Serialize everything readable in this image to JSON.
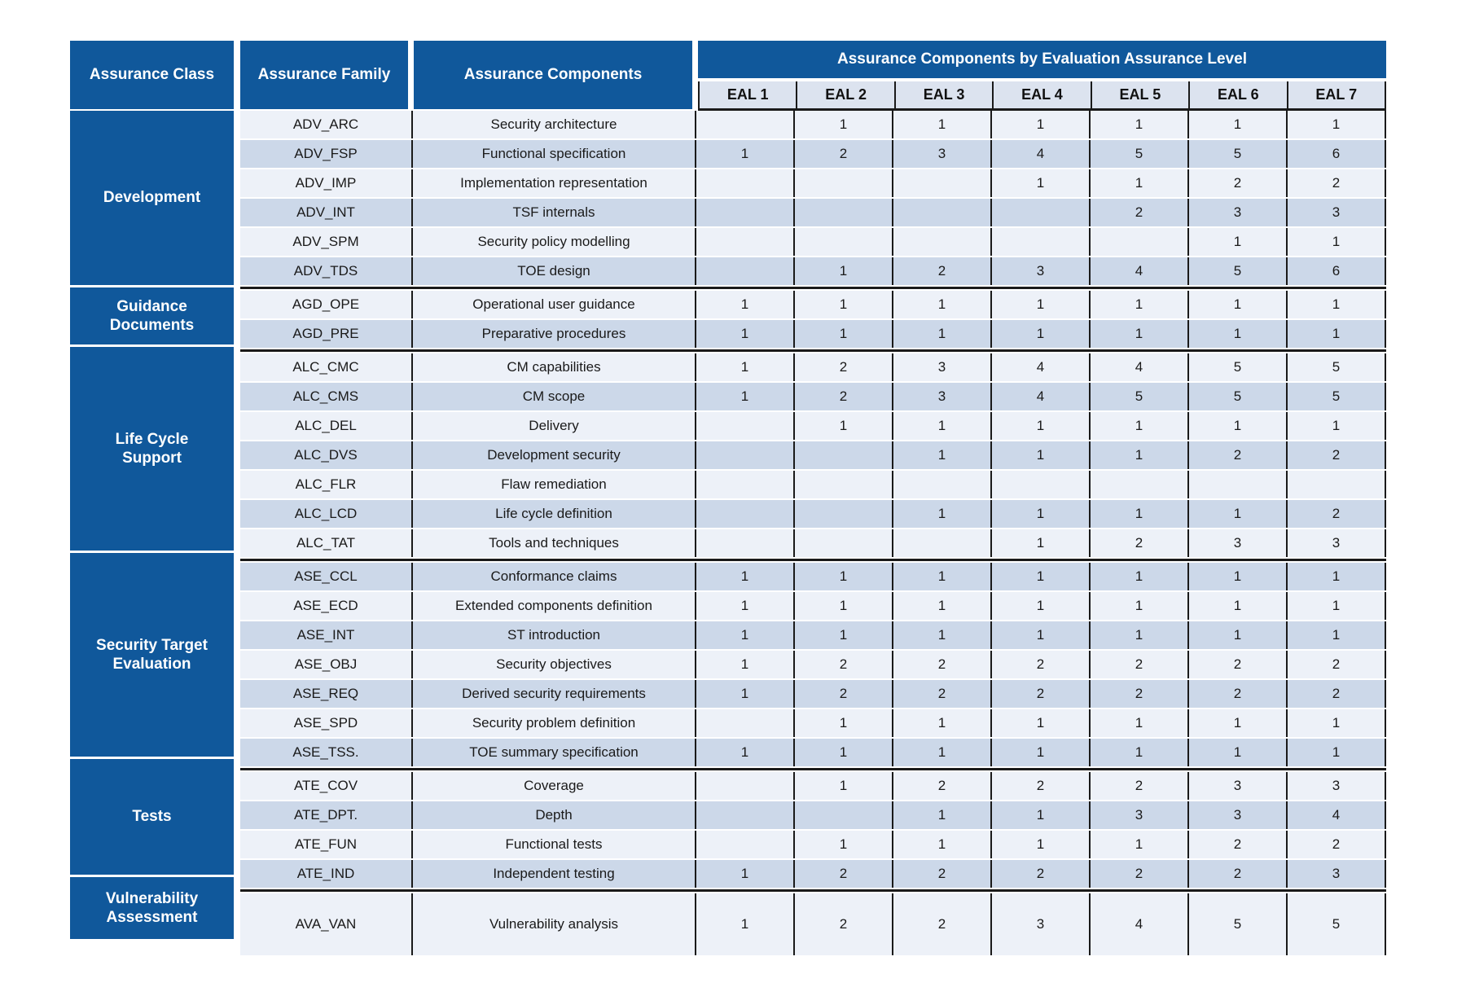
{
  "header": {
    "class_col": "Assurance Class",
    "family_col": "Assurance Family",
    "components_col": "Assurance Components",
    "eal_title": "Assurance Components by Evaluation Assurance Level",
    "eal_levels": [
      "EAL 1",
      "EAL 2",
      "EAL 3",
      "EAL 4",
      "EAL 5",
      "EAL 6",
      "EAL 7"
    ]
  },
  "colors": {
    "header_blue": "#10589B",
    "row_light": "#EDF1F8",
    "row_dark": "#CCD8E9",
    "eal_header_bg": "#DCE3EF",
    "line_black": "#1A1A1A"
  },
  "groups": [
    {
      "class_label": "Development",
      "rows": [
        {
          "family": "ADV_ARC",
          "component": "Security architecture",
          "eal": [
            "",
            "1",
            "1",
            "1",
            "1",
            "1",
            "1"
          ]
        },
        {
          "family": "ADV_FSP",
          "component": "Functional specification",
          "eal": [
            "1",
            "2",
            "3",
            "4",
            "5",
            "5",
            "6"
          ]
        },
        {
          "family": "ADV_IMP",
          "component": "Implementation representation",
          "eal": [
            "",
            "",
            "",
            "1",
            "1",
            "2",
            "2"
          ]
        },
        {
          "family": "ADV_INT",
          "component": "TSF internals",
          "eal": [
            "",
            "",
            "",
            "",
            "2",
            "3",
            "3"
          ]
        },
        {
          "family": "ADV_SPM",
          "component": "Security policy modelling",
          "eal": [
            "",
            "",
            "",
            "",
            "",
            "1",
            "1"
          ]
        },
        {
          "family": "ADV_TDS",
          "component": "TOE design",
          "eal": [
            "",
            "1",
            "2",
            "3",
            "4",
            "5",
            "6"
          ]
        }
      ]
    },
    {
      "class_label": "Guidance Documents",
      "rows": [
        {
          "family": "AGD_OPE",
          "component": "Operational user guidance",
          "eal": [
            "1",
            "1",
            "1",
            "1",
            "1",
            "1",
            "1"
          ]
        },
        {
          "family": "AGD_PRE",
          "component": "Preparative procedures",
          "eal": [
            "1",
            "1",
            "1",
            "1",
            "1",
            "1",
            "1"
          ]
        }
      ]
    },
    {
      "class_label": "Life Cycle Support",
      "rows": [
        {
          "family": "ALC_CMC",
          "component": "CM capabilities",
          "eal": [
            "1",
            "2",
            "3",
            "4",
            "4",
            "5",
            "5"
          ]
        },
        {
          "family": "ALC_CMS",
          "component": "CM scope",
          "eal": [
            "1",
            "2",
            "3",
            "4",
            "5",
            "5",
            "5"
          ]
        },
        {
          "family": "ALC_DEL",
          "component": "Delivery",
          "eal": [
            "",
            "1",
            "1",
            "1",
            "1",
            "1",
            "1"
          ]
        },
        {
          "family": "ALC_DVS",
          "component": "Development security",
          "eal": [
            "",
            "",
            "1",
            "1",
            "1",
            "2",
            "2"
          ]
        },
        {
          "family": "ALC_FLR",
          "component": "Flaw remediation",
          "eal": [
            "",
            "",
            "",
            "",
            "",
            "",
            ""
          ]
        },
        {
          "family": "ALC_LCD",
          "component": "Life cycle definition",
          "eal": [
            "",
            "",
            "1",
            "1",
            "1",
            "1",
            "2"
          ]
        },
        {
          "family": "ALC_TAT",
          "component": "Tools and techniques",
          "eal": [
            "",
            "",
            "",
            "1",
            "2",
            "3",
            "3"
          ]
        }
      ]
    },
    {
      "class_label": "Security Target Evaluation",
      "rows": [
        {
          "family": "ASE_CCL",
          "component": "Conformance claims",
          "eal": [
            "1",
            "1",
            "1",
            "1",
            "1",
            "1",
            "1"
          ]
        },
        {
          "family": "ASE_ECD",
          "component": "Extended components definition",
          "eal": [
            "1",
            "1",
            "1",
            "1",
            "1",
            "1",
            "1"
          ]
        },
        {
          "family": "ASE_INT",
          "component": "ST introduction",
          "eal": [
            "1",
            "1",
            "1",
            "1",
            "1",
            "1",
            "1"
          ]
        },
        {
          "family": "ASE_OBJ",
          "component": "Security objectives",
          "eal": [
            "1",
            "2",
            "2",
            "2",
            "2",
            "2",
            "2"
          ]
        },
        {
          "family": "ASE_REQ",
          "component": "Derived security requirements",
          "eal": [
            "1",
            "2",
            "2",
            "2",
            "2",
            "2",
            "2"
          ]
        },
        {
          "family": "ASE_SPD",
          "component": "Security problem definition",
          "eal": [
            "",
            "1",
            "1",
            "1",
            "1",
            "1",
            "1"
          ]
        },
        {
          "family": "ASE_TSS.",
          "component": "TOE summary specification",
          "eal": [
            "1",
            "1",
            "1",
            "1",
            "1",
            "1",
            "1"
          ]
        }
      ]
    },
    {
      "class_label": "Tests",
      "rows": [
        {
          "family": "ATE_COV",
          "component": "Coverage",
          "eal": [
            "",
            "1",
            "2",
            "2",
            "2",
            "3",
            "3"
          ]
        },
        {
          "family": "ATE_DPT.",
          "component": "Depth",
          "eal": [
            "",
            "",
            "1",
            "1",
            "3",
            "3",
            "4"
          ]
        },
        {
          "family": "ATE_FUN",
          "component": "Functional tests",
          "eal": [
            "",
            "1",
            "1",
            "1",
            "1",
            "2",
            "2"
          ]
        },
        {
          "family": "ATE_IND",
          "component": "Independent testing",
          "eal": [
            "1",
            "2",
            "2",
            "2",
            "2",
            "2",
            "3"
          ]
        }
      ]
    },
    {
      "class_label": "Vulnerability Assessment",
      "rows": [
        {
          "family": "AVA_VAN",
          "component": "Vulnerability analysis",
          "eal": [
            "1",
            "2",
            "2",
            "3",
            "4",
            "5",
            "5"
          ],
          "tall": true
        }
      ]
    }
  ]
}
